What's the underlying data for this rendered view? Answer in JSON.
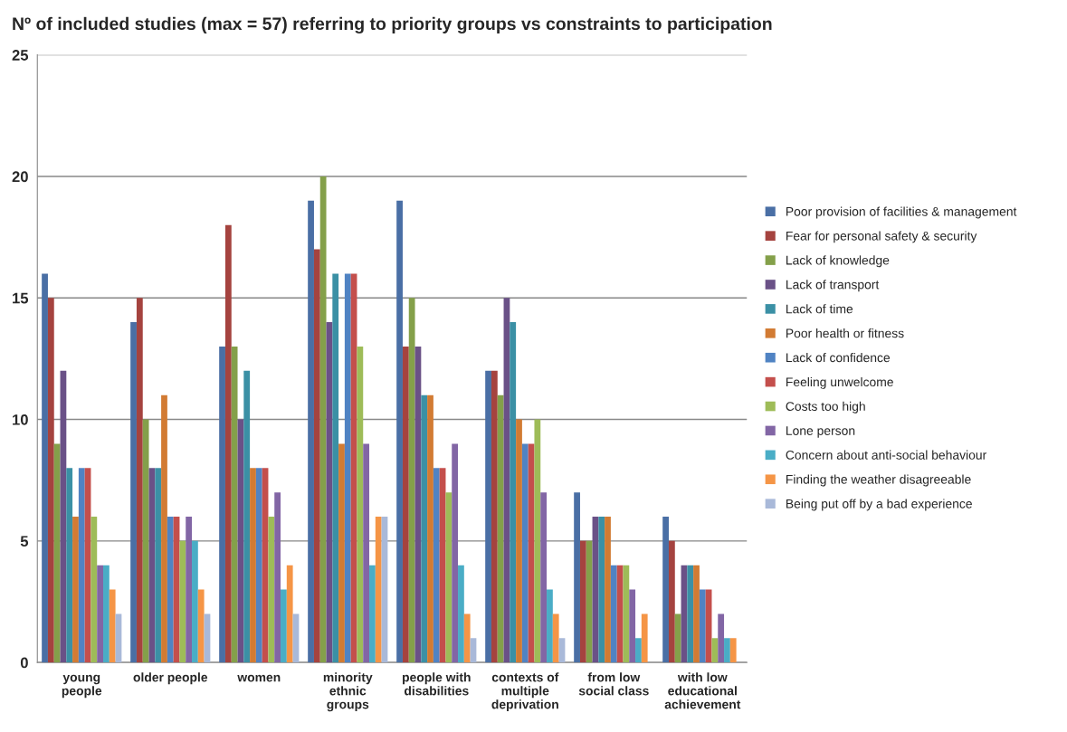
{
  "chart_data": {
    "type": "bar",
    "title": "Nº of included studies (max = 57) referring to priority groups vs constraints to participation",
    "categories": [
      "young\npeople",
      "older people",
      "women",
      "minority\nethnic\ngroups",
      "people with\ndisabilities",
      "contexts of\nmultiple\ndeprivation",
      "from low\nsocial class",
      "with low\neducational\nachievement"
    ],
    "series": [
      {
        "name": "Poor provision of facilities & management",
        "color": "#4a6fa5",
        "values": [
          16,
          14,
          13,
          19,
          19,
          12,
          7,
          6
        ]
      },
      {
        "name": "Fear for personal safety & security",
        "color": "#a5433f",
        "values": [
          15,
          15,
          18,
          17,
          13,
          12,
          5,
          5
        ]
      },
      {
        "name": "Lack of knowledge",
        "color": "#84a04a",
        "values": [
          9,
          10,
          13,
          20,
          15,
          11,
          5,
          2
        ]
      },
      {
        "name": "Lack of transport",
        "color": "#6a5187",
        "values": [
          12,
          8,
          10,
          14,
          13,
          15,
          6,
          4
        ]
      },
      {
        "name": "Lack of time",
        "color": "#3b90a5",
        "values": [
          8,
          8,
          12,
          16,
          11,
          14,
          6,
          4
        ]
      },
      {
        "name": "Poor health or fitness",
        "color": "#d27b33",
        "values": [
          6,
          11,
          8,
          9,
          11,
          10,
          6,
          4
        ]
      },
      {
        "name": "Lack of confidence",
        "color": "#5083c3",
        "values": [
          8,
          6,
          8,
          16,
          8,
          9,
          4,
          3
        ]
      },
      {
        "name": "Feeling unwelcome",
        "color": "#c44f4c",
        "values": [
          8,
          6,
          8,
          16,
          8,
          9,
          4,
          3
        ]
      },
      {
        "name": "Costs too high",
        "color": "#9ebc58",
        "values": [
          6,
          5,
          6,
          13,
          7,
          10,
          4,
          1
        ]
      },
      {
        "name": "Lone person",
        "color": "#8266a5",
        "values": [
          4,
          6,
          7,
          9,
          9,
          7,
          3,
          2
        ]
      },
      {
        "name": "Concern about anti-social behaviour",
        "color": "#4aadc6",
        "values": [
          4,
          5,
          3,
          4,
          4,
          3,
          1,
          1
        ]
      },
      {
        "name": "Finding the weather disagreeable",
        "color": "#f59546",
        "values": [
          3,
          3,
          4,
          6,
          2,
          2,
          2,
          1
        ]
      },
      {
        "name": "Being put off by a bad experience",
        "color": "#a9b9d9",
        "values": [
          2,
          2,
          2,
          6,
          1,
          1,
          0,
          0
        ]
      }
    ],
    "ylim": [
      0,
      25
    ],
    "yticks": [
      0,
      5,
      10,
      15,
      20,
      25
    ],
    "grid": "y",
    "legend": "right"
  }
}
